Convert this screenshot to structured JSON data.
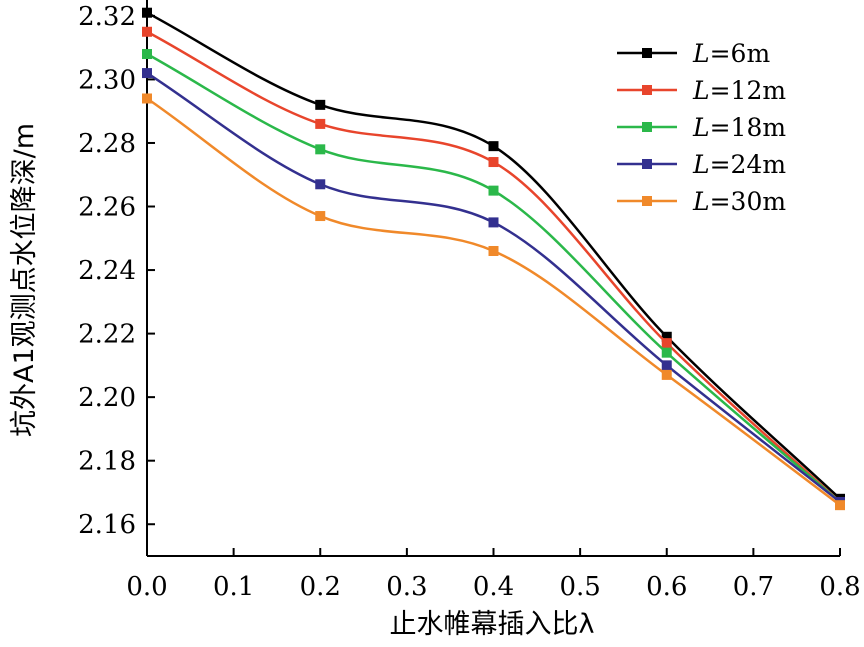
{
  "chart_data": {
    "type": "line",
    "xlabel": "止水帷幕插入比λ",
    "ylabel": "坑外A1观测点水位降深/m",
    "x": [
      0.0,
      0.2,
      0.4,
      0.6,
      0.8
    ],
    "xlim": [
      0.0,
      0.8
    ],
    "ylim": [
      2.15,
      2.325
    ],
    "xticks": [
      "0.0",
      "0.1",
      "0.2",
      "0.3",
      "0.4",
      "0.5",
      "0.6",
      "0.7",
      "0.8"
    ],
    "yticks": [
      "2.16",
      "2.18",
      "2.20",
      "2.22",
      "2.24",
      "2.26",
      "2.28",
      "2.30",
      "2.32"
    ],
    "grid": false,
    "legend_position": "top-right",
    "series": [
      {
        "name": "L=6m",
        "var": "L",
        "suffix": "=6m",
        "color": "#000000",
        "values": [
          2.321,
          2.292,
          2.279,
          2.219,
          2.168
        ]
      },
      {
        "name": "L=12m",
        "var": "L",
        "suffix": "=12m",
        "color": "#e8452c",
        "values": [
          2.315,
          2.286,
          2.274,
          2.217,
          2.167
        ]
      },
      {
        "name": "L=18m",
        "var": "L",
        "suffix": "=18m",
        "color": "#2bb84a",
        "values": [
          2.308,
          2.278,
          2.265,
          2.214,
          2.167
        ]
      },
      {
        "name": "L=24m",
        "var": "L",
        "suffix": "=24m",
        "color": "#33308f",
        "values": [
          2.302,
          2.267,
          2.255,
          2.21,
          2.167
        ]
      },
      {
        "name": "L=30m",
        "var": "L",
        "suffix": "=30m",
        "color": "#f0892a",
        "values": [
          2.294,
          2.257,
          2.246,
          2.207,
          2.166
        ]
      }
    ]
  }
}
